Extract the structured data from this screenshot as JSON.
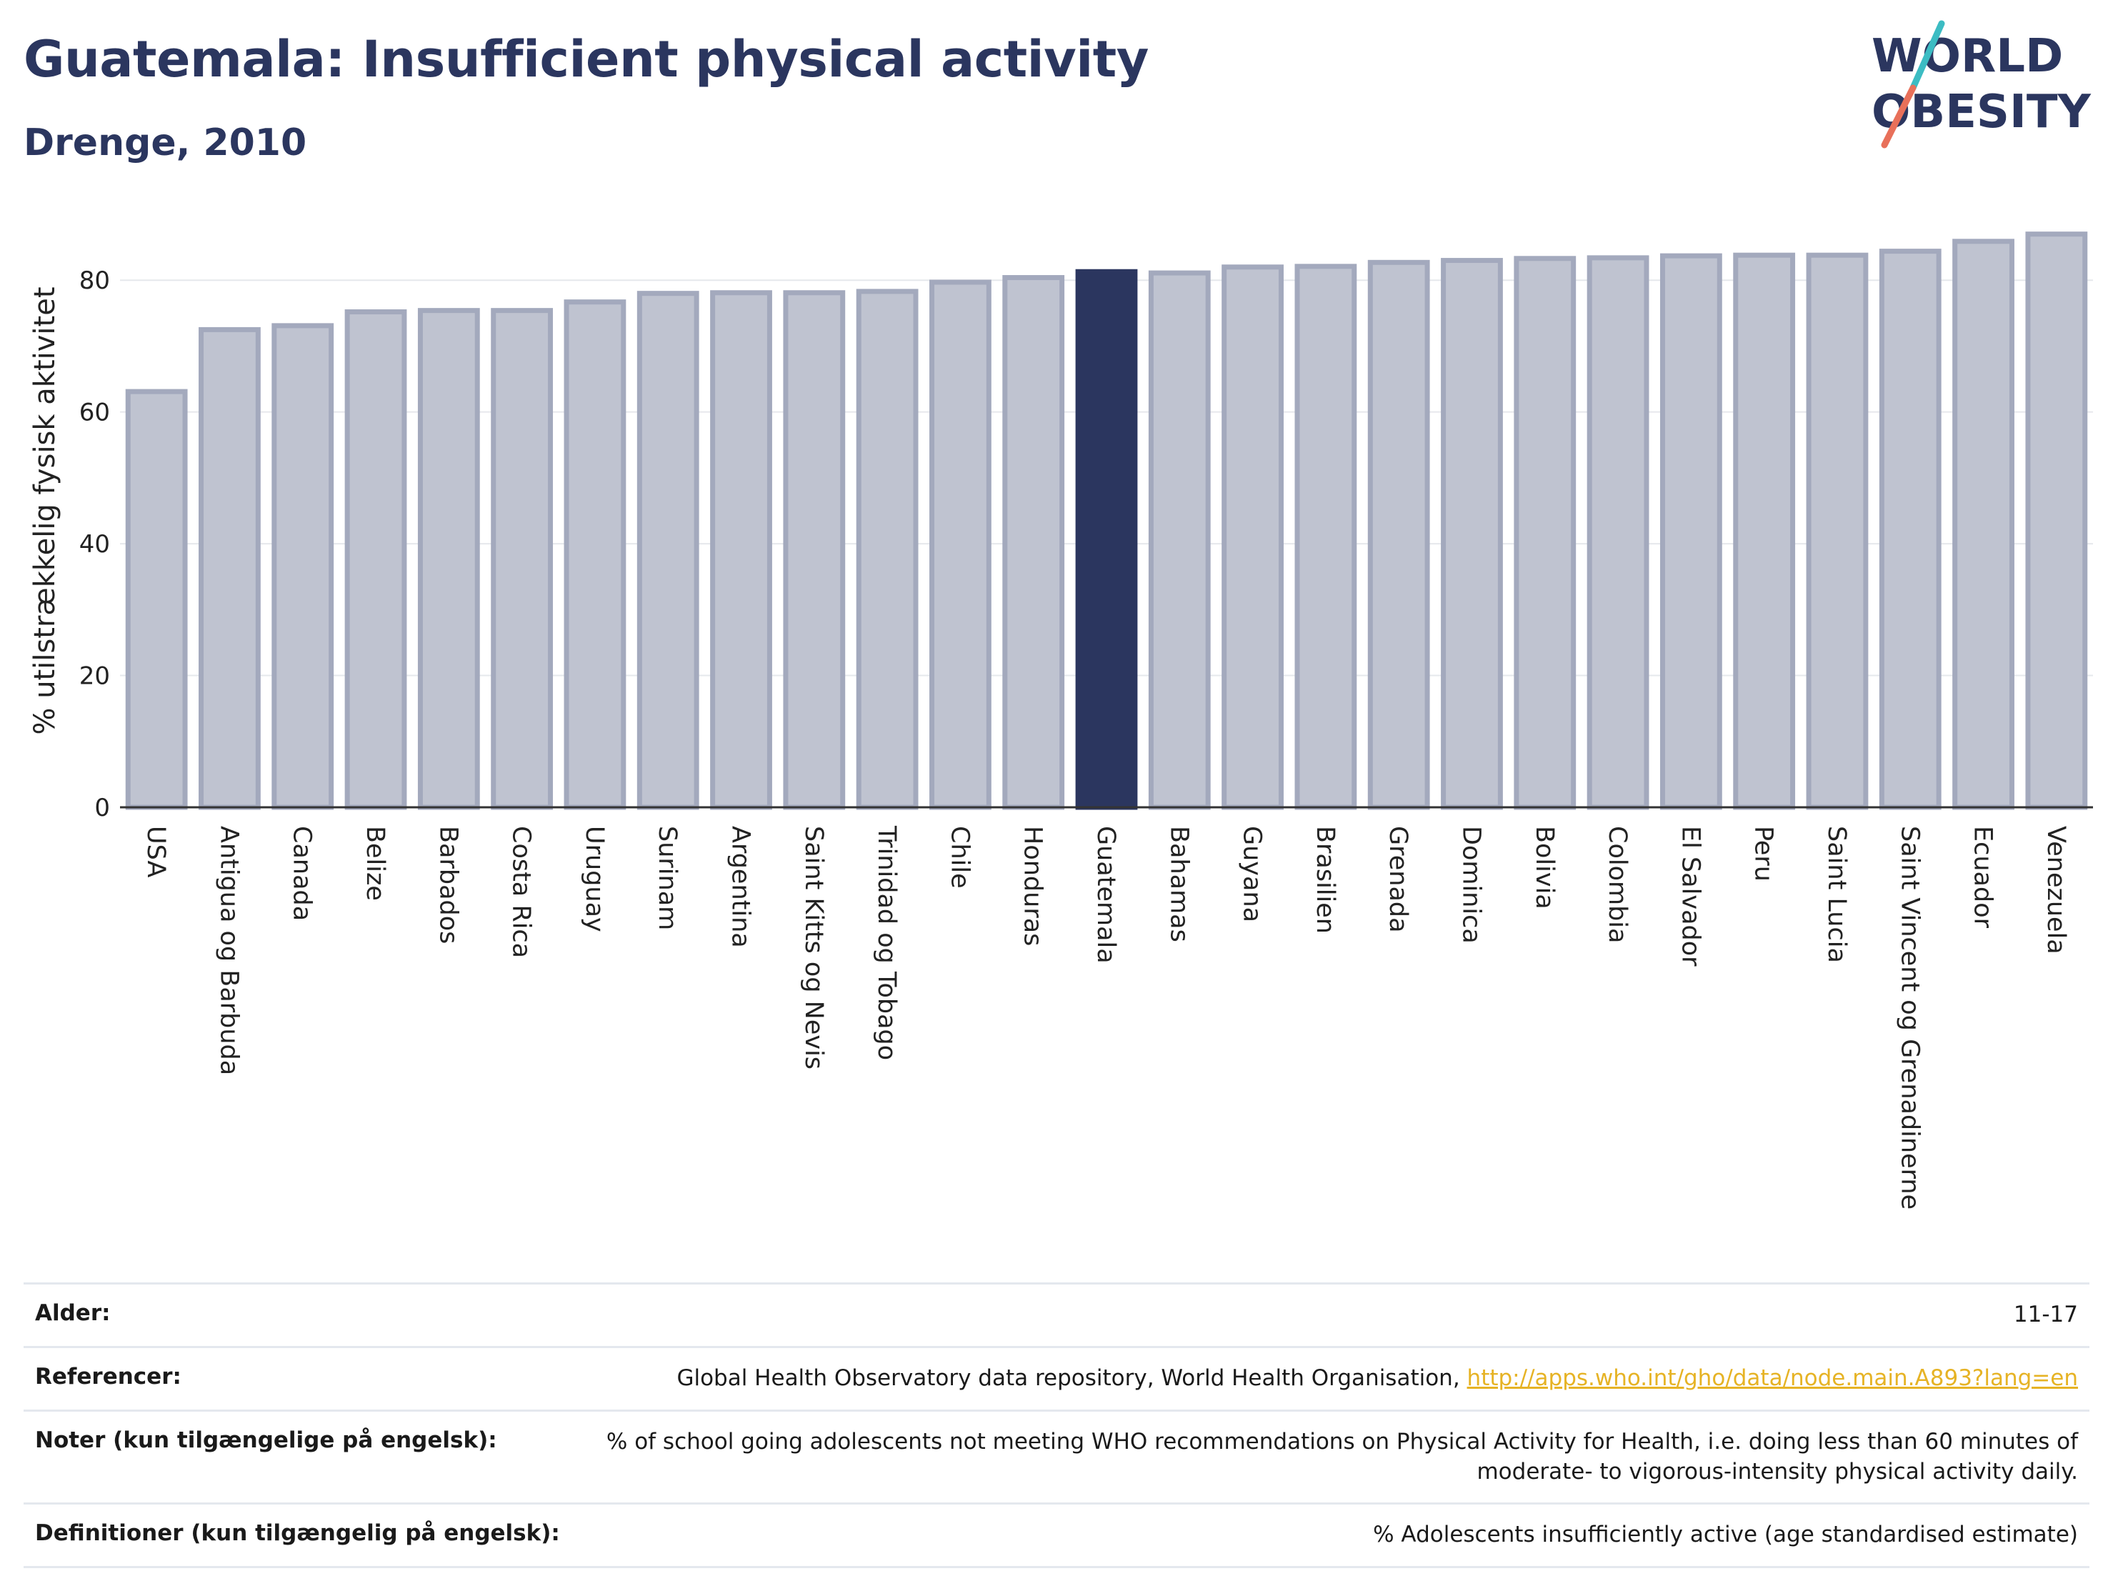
{
  "header": {
    "title": "Guatemala: Insufficient physical activity",
    "subtitle": "Drenge, 2010"
  },
  "logo": {
    "line1": "WORLD",
    "line2": "OBESITY"
  },
  "colors": {
    "title": "#2b365f",
    "bar_default": "#bfc3d0",
    "bar_border": "#a3a9bd",
    "bar_highlight": "#2b365f",
    "link": "#e6b325"
  },
  "chart_data": {
    "type": "bar",
    "title": "",
    "xlabel": "",
    "ylabel": "% utilstrækkelig fysisk aktivitet",
    "ylim": [
      0,
      90
    ],
    "yticks": [
      0,
      20,
      40,
      60,
      80
    ],
    "grid": true,
    "highlight": "Guatemala",
    "categories": [
      "USA",
      "Antigua og Barbuda",
      "Canada",
      "Belize",
      "Barbados",
      "Costa Rica",
      "Uruguay",
      "Surinam",
      "Argentina",
      "Saint Kitts og Nevis",
      "Trinidad og Tobago",
      "Chile",
      "Honduras",
      "Guatemala",
      "Bahamas",
      "Guyana",
      "Brasilien",
      "Grenada",
      "Dominica",
      "Bolivia",
      "Colombia",
      "El Salvador",
      "Peru",
      "Saint Lucia",
      "Saint Vincent og Grenadinerne",
      "Ecuador",
      "Venezuela"
    ],
    "values": [
      63.1,
      72.5,
      73.1,
      75.2,
      75.4,
      75.4,
      76.7,
      78.0,
      78.1,
      78.1,
      78.3,
      79.7,
      80.4,
      81.3,
      81.1,
      82.0,
      82.1,
      82.7,
      83.0,
      83.3,
      83.4,
      83.7,
      83.8,
      83.8,
      84.4,
      85.9,
      87.0
    ]
  },
  "info": {
    "age_label": "Alder:",
    "age_value": "11-17",
    "ref_label": "Referencer:",
    "ref_text": "Global Health Observatory data repository, World Health Organisation, ",
    "ref_link": "http://apps.who.int/gho/data/node.main.A893?lang=en",
    "notes_label": "Noter (kun tilgængelige på engelsk):",
    "notes_value": "% of school going adolescents not meeting WHO recommendations on Physical Activity for Health, i.e. doing less than 60 minutes of moderate- to vigorous-intensity physical activity daily.",
    "def_label": "Definitioner (kun tilgængelig på engelsk):",
    "def_value": "% Adolescents insufficiently active (age standardised estimate)"
  }
}
